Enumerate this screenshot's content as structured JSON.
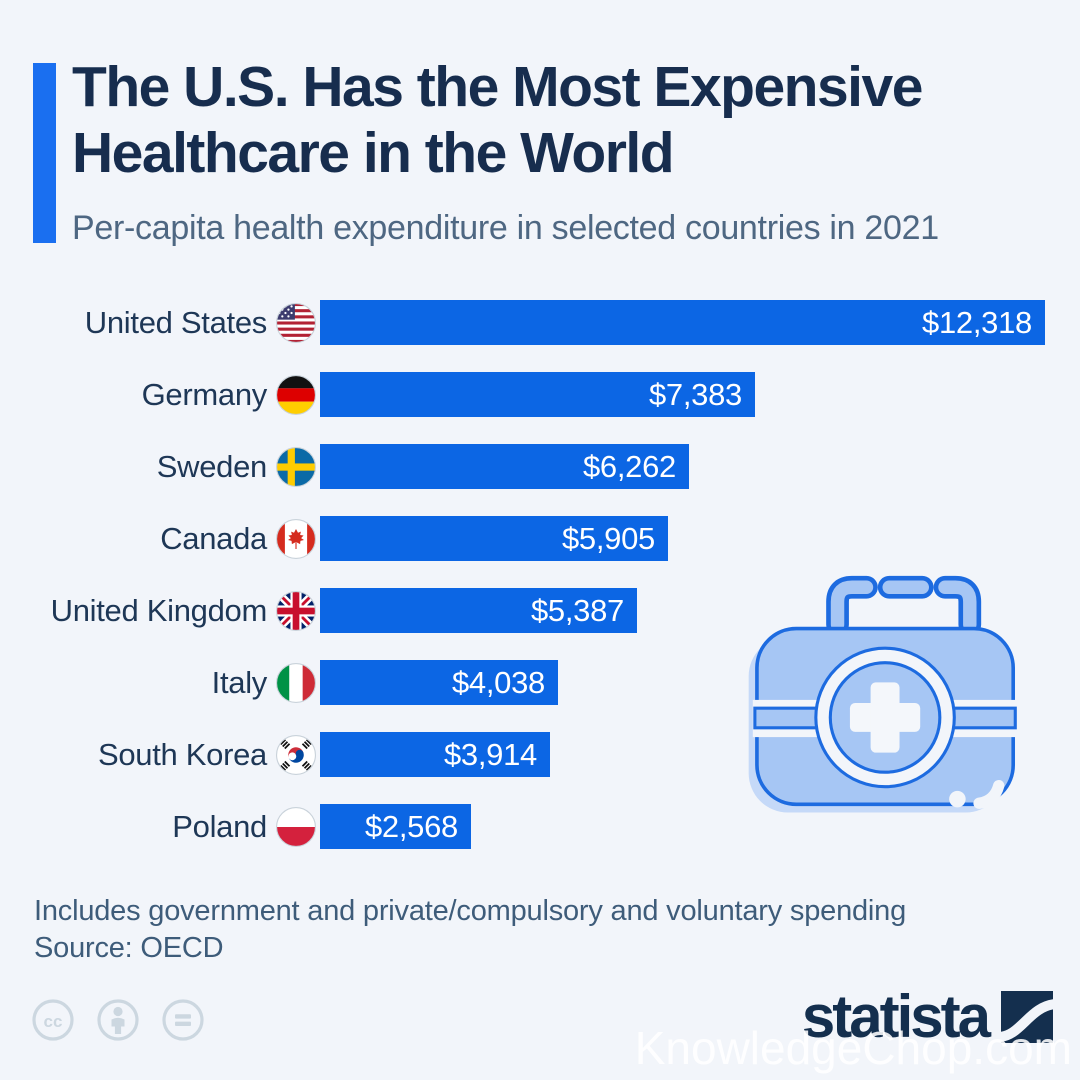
{
  "page": {
    "background": "#f2f5fa",
    "accent_color": "#1a6ff0",
    "watermark": "KnowledgeChop.com"
  },
  "header": {
    "title_line1": "The U.S. Has the Most Expensive",
    "title_line2": "Healthcare in the World",
    "subtitle": "Per-capita health expenditure in selected countries in 2021"
  },
  "chart_data": {
    "type": "bar",
    "orientation": "horizontal",
    "title": "Per-capita health expenditure in selected countries in 2021",
    "unit": "USD per capita",
    "xlim": [
      0,
      12318
    ],
    "grid": false,
    "legend": false,
    "categories": [
      "United States",
      "Germany",
      "Sweden",
      "Canada",
      "United Kingdom",
      "Italy",
      "South Korea",
      "Poland"
    ],
    "values": [
      12318,
      7383,
      6262,
      5905,
      5387,
      4038,
      3914,
      2568
    ],
    "value_labels": [
      "$12,318",
      "$7,383",
      "$6,262",
      "$5,905",
      "$5,387",
      "$4,038",
      "$3,914",
      "$2,568"
    ],
    "flags": [
      "us",
      "de",
      "se",
      "ca",
      "gb",
      "it",
      "kr",
      "pl"
    ],
    "bar_color": "#0c66e4",
    "value_label_color": "#ffffff",
    "label_color": "#1e3756"
  },
  "footer": {
    "note": "Includes government and private/compulsory and voluntary spending",
    "source": "Source: OECD",
    "license_icons": [
      "cc-icon",
      "attribution-icon",
      "equals-icon"
    ],
    "brand": "statista"
  },
  "illustration": "first-aid-kit"
}
